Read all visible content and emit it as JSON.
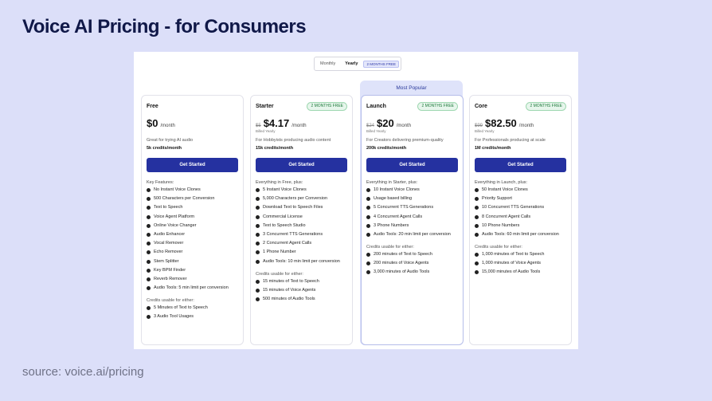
{
  "slide": {
    "title": "Voice AI Pricing - for Consumers",
    "source": "source: voice.ai/pricing"
  },
  "toggle": {
    "monthly": "Monthly",
    "yearly": "Yearly",
    "badge": "2 MONTHS FREE",
    "selected": "Yearly"
  },
  "popular_label": "Most Popular",
  "colors": {
    "accent": "#2531a0",
    "popular_bg": "#dfe3fa",
    "badge_green": "#1f7a3c"
  },
  "plans": [
    {
      "name": "Free",
      "badge": "",
      "old_price": "",
      "price": "$0",
      "per": "/month",
      "billed": "",
      "desc": "Great for trying AI audio",
      "credits": "5k credits/month",
      "cta": "Get Started",
      "features_title": "Key Features:",
      "features": [
        "No Instant Voice Clones",
        "500 Characters per Conversion",
        "Text to Speech",
        "Voice Agent Platform",
        "Online Voice Changer",
        "Audio Enhancer",
        "Vocal Remover",
        "Echo Remover",
        "Stem Splitter",
        "Key BPM Finder",
        "Reverb Remover",
        "Audio Tools: 5 min limit per conversion"
      ],
      "usable_title": "Credits usable for either:",
      "usable": [
        "5 Minutes of Text to Speech",
        "3 Audio Tool Usages"
      ]
    },
    {
      "name": "Starter",
      "badge": "2 MONTHS FREE",
      "old_price": "$5",
      "price": "$4.17",
      "per": "/month",
      "billed": "Billed Yearly",
      "desc": "For Hobbyists producing audio content",
      "credits": "15k credits/month",
      "cta": "Get Started",
      "features_title": "Everything in Free, plus:",
      "features": [
        "5 Instant Voice Clones",
        "5,000 Characters per Conversion",
        "Download Text to Speech Files",
        "Commercial License",
        "Text to Speech Studio",
        "3 Concurrent TTS Generations",
        "2 Concurrent Agent Calls",
        "1 Phone Number",
        "Audio Tools: 10 min limit per conversion"
      ],
      "usable_title": "Credits usable for either:",
      "usable": [
        "15 minutes of Text to Speech",
        "15 minutes of Voice Agents",
        "500 minutes of Audio Tools"
      ]
    },
    {
      "name": "Launch",
      "badge": "2 MONTHS FREE",
      "old_price": "$24",
      "price": "$20",
      "per": "/month",
      "billed": "Billed Yearly",
      "desc": "For Creators delivering premium-quality",
      "credits": "200k credits/month",
      "cta": "Get Started",
      "features_title": "Everything in Starter, plus:",
      "features": [
        "10 Instant Voice Clones",
        "Usage based billing",
        "5 Concurrent TTS Generations",
        "4 Concurrent Agent Calls",
        "3 Phone Numbers",
        "Audio Tools: 20 min limit per conversion"
      ],
      "usable_title": "Credits usable for either:",
      "usable": [
        "200 minutes of Text to Speech",
        "200 minutes of Voice Agents",
        "3,000 minutes of Audio Tools"
      ]
    },
    {
      "name": "Core",
      "badge": "2 MONTHS FREE",
      "old_price": "$99",
      "price": "$82.50",
      "per": "/month",
      "billed": "Billed Yearly",
      "desc": "For Professionals producing at scale",
      "credits": "1M credits/month",
      "cta": "Get Started",
      "features_title": "Everything in Launch, plus:",
      "features": [
        "50 Instant Voice Clones",
        "Priority Support",
        "10 Concurrent TTS Generations",
        "8 Concurrent Agent Calls",
        "10 Phone Numbers",
        "Audio Tools: 60 min limit per conversion"
      ],
      "usable_title": "Credits usable for either:",
      "usable": [
        "1,000 minutes of Text to Speech",
        "1,000 minutes of Voice Agents",
        "15,000 minutes of Audio Tools"
      ]
    }
  ]
}
